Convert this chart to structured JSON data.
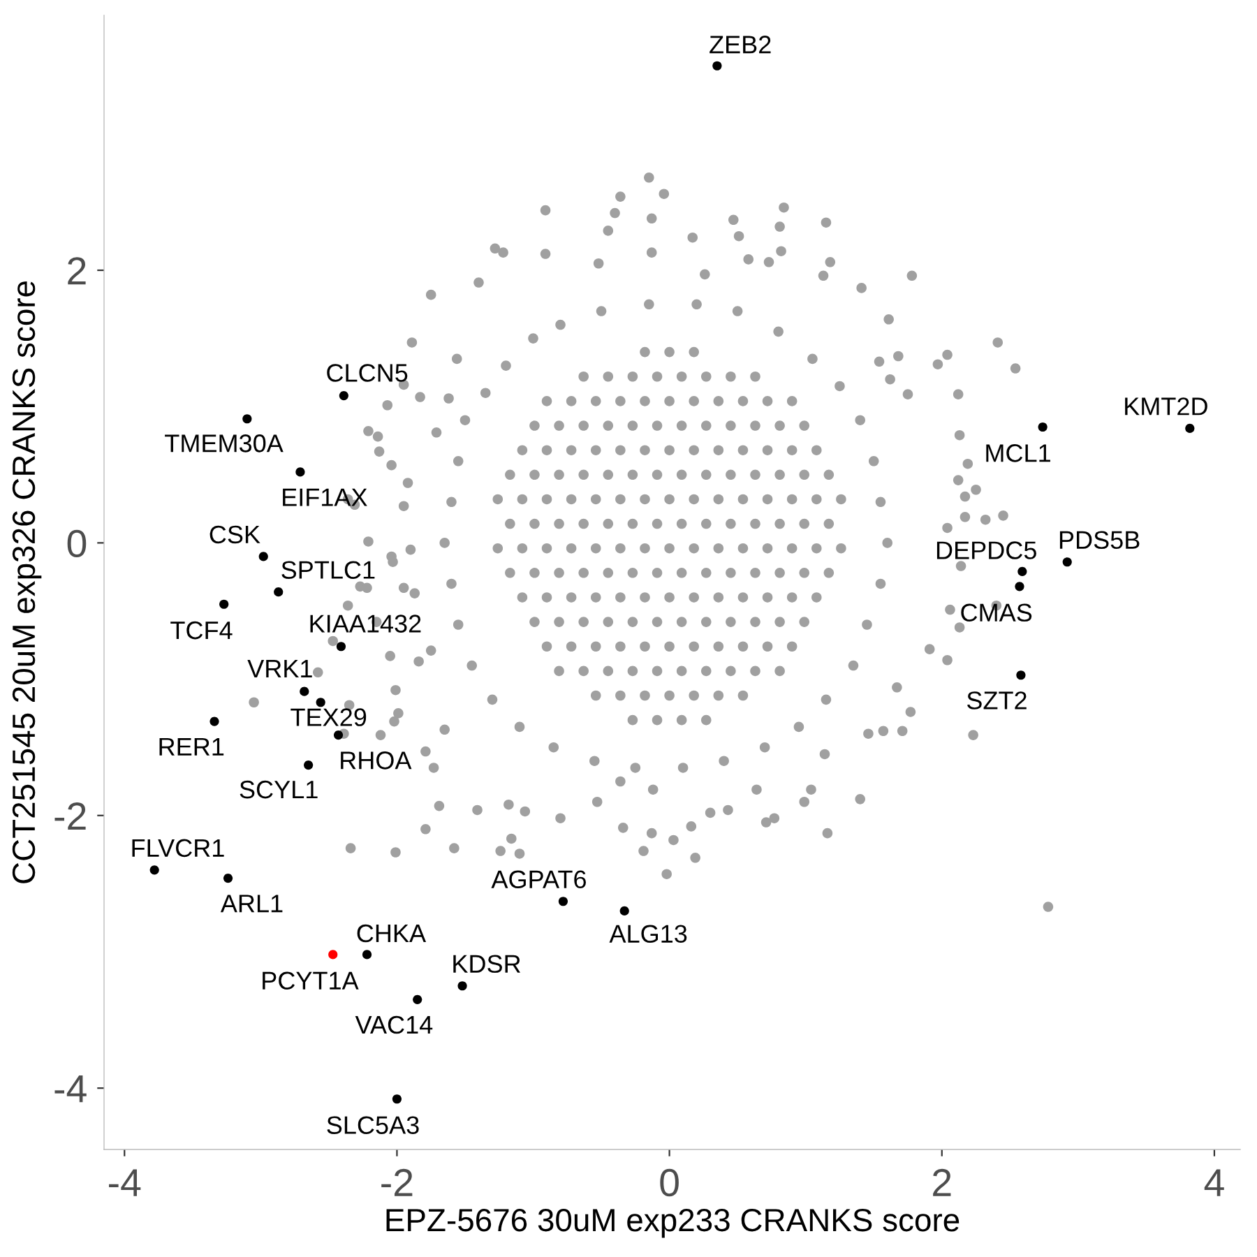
{
  "chart_data": {
    "type": "scatter",
    "xlabel": "EPZ-5676 30uM exp233 CRANKS score",
    "ylabel": "CCT251545 20uM exp326 CRANKS score",
    "xlim": [
      -4.15,
      4.19
    ],
    "ylim": [
      -4.45,
      3.87
    ],
    "xticks": [
      -4,
      -2,
      0,
      2,
      4
    ],
    "yticks": [
      -4,
      -2,
      0,
      2
    ],
    "marker": "circle",
    "series": [
      {
        "color": "#a0a0a0",
        "x": [
          -0.15,
          -0.04,
          -0.13,
          -0.13,
          0.17,
          0.47,
          0.51,
          0.84,
          0.81,
          1.15,
          0.82,
          0.58,
          0.73,
          1.18,
          1.13,
          1.78,
          1.41,
          -0.36,
          -0.91,
          -0.4,
          -0.45,
          -1.28,
          -1.22,
          -0.91,
          -1.75,
          -1.4,
          -0.52,
          0.26,
          1.61,
          2.41,
          2.54,
          2.04,
          1.97,
          1.68,
          1.54,
          1.62,
          2.12,
          1.75,
          2.13,
          2.19,
          2.12,
          2.25,
          2.17,
          2.45,
          2.32,
          2.17,
          2.04,
          2.14,
          2.06,
          2.4,
          2.13,
          2.04,
          1.91,
          1.67,
          1.77,
          2.23,
          1.46,
          1.57,
          1.71,
          2.78,
          1.4,
          1.16,
          0.99,
          1.04,
          1.14,
          0.71,
          0.77,
          0.64,
          0.3,
          0.43,
          0.16,
          0.03,
          -0.13,
          -0.19,
          0.19,
          -0.02,
          -0.34,
          -0.8,
          -1.06,
          -1.18,
          -1.41,
          -1.69,
          -1.16,
          -1.1,
          -1.24,
          -1.58,
          -1.79,
          -2.01,
          -2.34,
          -1.79,
          -1.73,
          -1.65,
          -0.53,
          -0.36,
          -0.12,
          -2.12,
          -2.02,
          -1.99,
          -2.39,
          -2.35,
          -3.05,
          -2.58,
          -2.01,
          -2.47,
          -2.05,
          -1.84,
          -1.75,
          -2.36,
          -2.27,
          -2.22,
          -1.95,
          -2.15,
          -1.87,
          -2.04,
          -1.9,
          -2.03,
          -2.21,
          -2.31,
          -2.36,
          -1.95,
          -2.04,
          -1.92,
          -2.13,
          -2.21,
          -2.14,
          -1.71,
          -2.07,
          -1.95,
          -1.83,
          -1.62,
          -1.89,
          -1.56,
          -1.2,
          -1.0,
          -1.35,
          -1.5,
          -1.55,
          -1.6,
          -1.65,
          -1.6,
          -1.55,
          -1.45,
          -1.3,
          -1.1,
          -0.85,
          -0.55,
          -0.25,
          0.1,
          0.4,
          0.7,
          0.95,
          1.15,
          1.35,
          1.45,
          1.55,
          1.6,
          1.55,
          1.5,
          1.4,
          1.25,
          1.05,
          0.8,
          0.5,
          0.2,
          -0.15,
          -0.5,
          -0.8,
          -0.18,
          0,
          0.18,
          -0.63,
          -0.45,
          -0.27,
          -0.09,
          0.09,
          0.27,
          0.45,
          0.63,
          -0.9,
          -0.72,
          -0.54,
          -0.36,
          -0.18,
          0,
          0.18,
          0.36,
          0.54,
          0.72,
          0.9,
          -0.99,
          -0.81,
          -0.63,
          -0.45,
          -0.27,
          -0.09,
          0.09,
          0.27,
          0.45,
          0.63,
          0.81,
          0.99,
          -1.08,
          -0.9,
          -0.72,
          -0.54,
          -0.36,
          -0.18,
          0,
          0.18,
          0.36,
          0.54,
          0.72,
          0.9,
          1.08,
          -1.17,
          -0.99,
          -0.81,
          -0.63,
          -0.45,
          -0.27,
          -0.09,
          0.09,
          0.27,
          0.45,
          0.63,
          0.81,
          0.99,
          1.17,
          -1.26,
          -1.08,
          -0.9,
          -0.72,
          -0.54,
          -0.36,
          -0.18,
          0,
          0.18,
          0.36,
          0.54,
          0.72,
          0.9,
          1.08,
          1.26,
          -1.17,
          -0.99,
          -0.81,
          -0.63,
          -0.45,
          -0.27,
          -0.09,
          0.09,
          0.27,
          0.45,
          0.63,
          0.81,
          0.99,
          1.17,
          -1.26,
          -1.08,
          -0.9,
          -0.72,
          -0.54,
          -0.36,
          -0.18,
          0,
          0.18,
          0.36,
          0.54,
          0.72,
          0.9,
          1.08,
          1.26,
          -1.17,
          -0.99,
          -0.81,
          -0.63,
          -0.45,
          -0.27,
          -0.09,
          0.09,
          0.27,
          0.45,
          0.63,
          0.81,
          0.99,
          1.17,
          -1.08,
          -0.9,
          -0.72,
          -0.54,
          -0.36,
          -0.18,
          0,
          0.18,
          0.36,
          0.54,
          0.72,
          0.9,
          1.08,
          -0.99,
          -0.81,
          -0.63,
          -0.45,
          -0.27,
          -0.09,
          0.09,
          0.27,
          0.45,
          0.63,
          0.81,
          0.99,
          -0.9,
          -0.72,
          -0.54,
          -0.36,
          -0.18,
          0,
          0.18,
          0.36,
          0.54,
          0.72,
          0.9,
          -0.81,
          -0.63,
          -0.45,
          -0.27,
          -0.09,
          0.09,
          0.27,
          0.45,
          0.63,
          0.81,
          -0.54,
          -0.36,
          -0.18,
          0,
          0.18,
          0.36,
          0.54,
          -0.27,
          -0.09,
          0.09,
          0.27
        ],
        "values": [
          2.68,
          2.56,
          2.38,
          2.13,
          2.24,
          2.37,
          2.25,
          2.46,
          2.32,
          2.35,
          2.14,
          2.08,
          2.06,
          2.06,
          1.96,
          1.96,
          1.87,
          2.54,
          2.44,
          2.42,
          2.29,
          2.16,
          2.13,
          2.12,
          1.82,
          1.91,
          2.05,
          1.97,
          1.64,
          1.47,
          1.28,
          1.38,
          1.31,
          1.37,
          1.33,
          1.2,
          1.09,
          1.09,
          0.79,
          0.58,
          0.46,
          0.39,
          0.34,
          0.2,
          0.17,
          0.19,
          0.11,
          -0.17,
          -0.49,
          -0.46,
          -0.62,
          -0.86,
          -0.78,
          -1.06,
          -1.24,
          -1.41,
          -1.4,
          -1.38,
          -1.38,
          -2.67,
          -1.88,
          -2.13,
          -1.9,
          -1.81,
          -1.55,
          -2.05,
          -2.02,
          -1.81,
          -1.98,
          -1.96,
          -2.08,
          -2.18,
          -2.13,
          -2.26,
          -2.31,
          -2.43,
          -2.09,
          -2.02,
          -1.97,
          -1.92,
          -1.96,
          -1.93,
          -2.17,
          -2.28,
          -2.26,
          -2.24,
          -2.1,
          -2.27,
          -2.24,
          -1.53,
          -1.65,
          -1.37,
          -1.9,
          -1.75,
          -1.81,
          -1.41,
          -1.31,
          -1.25,
          -1.4,
          -1.19,
          -1.17,
          -0.95,
          -1.08,
          -0.72,
          -0.83,
          -0.87,
          -0.79,
          -0.46,
          -0.32,
          -0.33,
          -0.33,
          -0.58,
          -0.37,
          -0.1,
          -0.05,
          -0.14,
          0.01,
          0.28,
          0.32,
          0.27,
          0.57,
          0.44,
          0.67,
          0.82,
          0.78,
          0.81,
          1.01,
          1.16,
          1.07,
          1.06,
          1.47,
          1.35,
          1.3,
          1.5,
          1.1,
          0.9,
          0.6,
          0.3,
          0.0,
          -0.3,
          -0.6,
          -0.9,
          -1.15,
          -1.35,
          -1.5,
          -1.6,
          -1.65,
          -1.65,
          -1.6,
          -1.5,
          -1.35,
          -1.15,
          -0.9,
          -0.6,
          -0.3,
          0.0,
          0.3,
          0.6,
          0.9,
          1.15,
          1.35,
          1.55,
          1.7,
          1.75,
          1.75,
          1.7,
          1.6,
          1.4,
          1.4,
          1.4,
          1.22,
          1.22,
          1.22,
          1.22,
          1.22,
          1.22,
          1.22,
          1.22,
          1.04,
          1.04,
          1.04,
          1.04,
          1.04,
          1.04,
          1.04,
          1.04,
          1.04,
          1.04,
          1.04,
          0.86,
          0.86,
          0.86,
          0.86,
          0.86,
          0.86,
          0.86,
          0.86,
          0.86,
          0.86,
          0.86,
          0.86,
          0.68,
          0.68,
          0.68,
          0.68,
          0.68,
          0.68,
          0.68,
          0.68,
          0.68,
          0.68,
          0.68,
          0.68,
          0.68,
          0.5,
          0.5,
          0.5,
          0.5,
          0.5,
          0.5,
          0.5,
          0.5,
          0.5,
          0.5,
          0.5,
          0.5,
          0.5,
          0.5,
          0.32,
          0.32,
          0.32,
          0.32,
          0.32,
          0.32,
          0.32,
          0.32,
          0.32,
          0.32,
          0.32,
          0.32,
          0.32,
          0.32,
          0.32,
          0.14,
          0.14,
          0.14,
          0.14,
          0.14,
          0.14,
          0.14,
          0.14,
          0.14,
          0.14,
          0.14,
          0.14,
          0.14,
          0.14,
          -0.04,
          -0.04,
          -0.04,
          -0.04,
          -0.04,
          -0.04,
          -0.04,
          -0.04,
          -0.04,
          -0.04,
          -0.04,
          -0.04,
          -0.04,
          -0.04,
          -0.04,
          -0.22,
          -0.22,
          -0.22,
          -0.22,
          -0.22,
          -0.22,
          -0.22,
          -0.22,
          -0.22,
          -0.22,
          -0.22,
          -0.22,
          -0.22,
          -0.22,
          -0.4,
          -0.4,
          -0.4,
          -0.4,
          -0.4,
          -0.4,
          -0.4,
          -0.4,
          -0.4,
          -0.4,
          -0.4,
          -0.4,
          -0.4,
          -0.58,
          -0.58,
          -0.58,
          -0.58,
          -0.58,
          -0.58,
          -0.58,
          -0.58,
          -0.58,
          -0.58,
          -0.58,
          -0.58,
          -0.76,
          -0.76,
          -0.76,
          -0.76,
          -0.76,
          -0.76,
          -0.76,
          -0.76,
          -0.76,
          -0.76,
          -0.76,
          -0.94,
          -0.94,
          -0.94,
          -0.94,
          -0.94,
          -0.94,
          -0.94,
          -0.94,
          -0.94,
          -0.94,
          -1.12,
          -1.12,
          -1.12,
          -1.12,
          -1.12,
          -1.12,
          -1.12,
          -1.3,
          -1.3,
          -1.3,
          -1.3
        ]
      },
      {
        "color": "#000000",
        "x": [
          0.35,
          3.82,
          2.74,
          2.92,
          2.59,
          2.57,
          2.58,
          -2.39,
          -3.1,
          -2.71,
          -2.98,
          -2.87,
          -3.27,
          -2.41,
          -2.68,
          -2.56,
          -2.43,
          -3.34,
          -2.65,
          -3.78,
          -3.24,
          -0.78,
          -0.33,
          -2.22,
          -1.52,
          -1.85,
          -2.0
        ],
        "values": [
          3.5,
          0.84,
          0.85,
          -0.14,
          -0.21,
          -0.32,
          -0.97,
          1.08,
          0.91,
          0.52,
          -0.1,
          -0.36,
          -0.45,
          -0.76,
          -1.09,
          -1.17,
          -1.41,
          -1.31,
          -1.63,
          -2.4,
          -2.46,
          -2.63,
          -2.7,
          -3.02,
          -3.25,
          -3.35,
          -4.08
        ],
        "value_labels": [
          "ZEB2",
          "KMT2D",
          "MCL1",
          "PDS5B",
          "DEPDC5",
          "CMAS",
          "SZT2",
          "CLCN5",
          "TMEM30A",
          "EIF1AX",
          "CSK",
          "SPTLC1",
          "TCF4",
          "KIAA1432",
          "VRK1",
          "TEX29",
          "RHOA",
          "RER1",
          "SCYL1",
          "FLVCR1",
          "ARL1",
          "AGPAT6",
          "ALG13",
          "CHKA",
          "KDSR",
          "VAC14",
          "SLC5A3"
        ]
      },
      {
        "color": "#ff0000",
        "x": [
          -2.47
        ],
        "values": [
          -3.02
        ],
        "value_labels": [
          "PCYT1A"
        ]
      }
    ]
  }
}
